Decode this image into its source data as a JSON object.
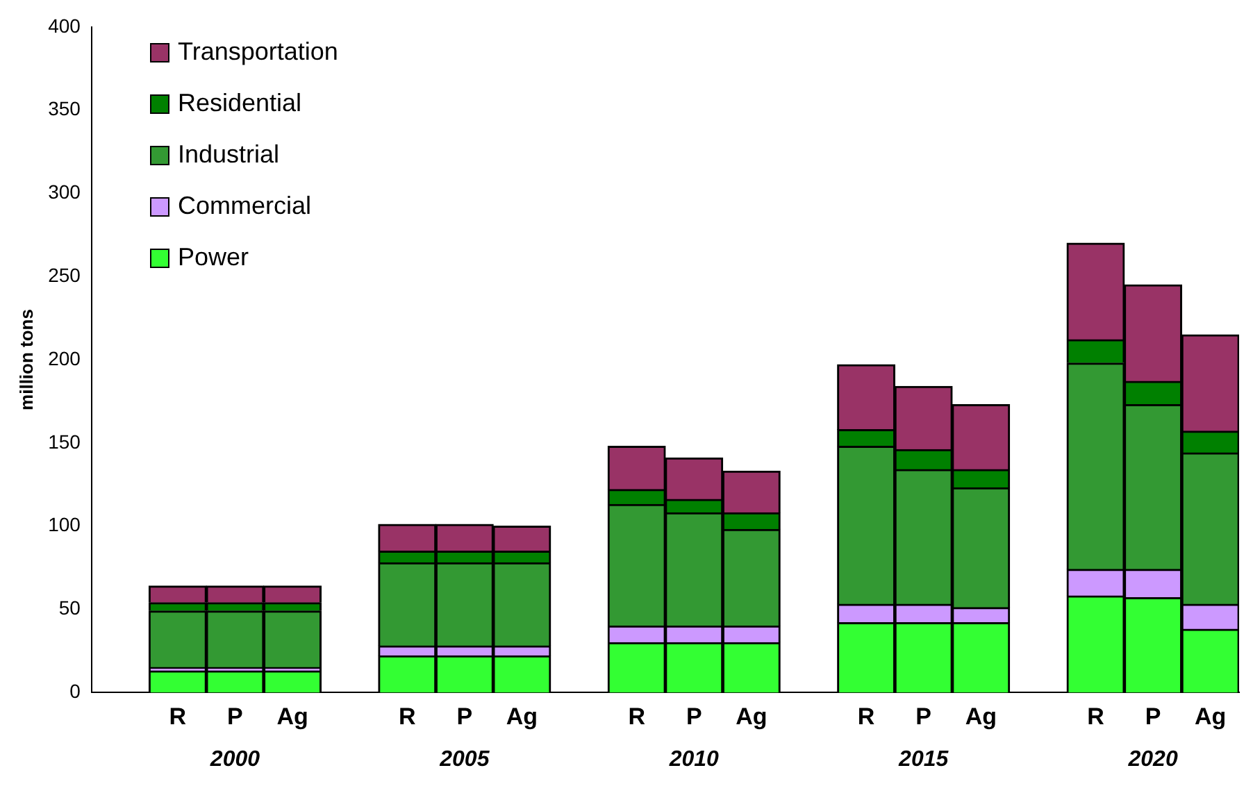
{
  "chart_data": {
    "type": "bar",
    "stacked": true,
    "ylabel": "million tons",
    "categories": [
      null,
      "R",
      "P",
      "Ag",
      null,
      "R",
      "P",
      "Ag",
      null,
      "R",
      "P",
      "Ag",
      null,
      "R",
      "P",
      "Ag",
      null,
      "R",
      "P",
      "Ag"
    ],
    "annotations": [
      "2000",
      "2005",
      "2010",
      "2015",
      "2020"
    ],
    "series": [
      {
        "name": "Power",
        "color": "#33ff33",
        "values": [
          null,
          13,
          13,
          13,
          null,
          22,
          22,
          22,
          null,
          30,
          30,
          30,
          null,
          42,
          42,
          42,
          null,
          58,
          57,
          38
        ]
      },
      {
        "name": "Commercial",
        "color": "#cc99ff",
        "values": [
          null,
          2,
          2,
          2,
          null,
          6,
          6,
          6,
          null,
          10,
          10,
          10,
          null,
          11,
          11,
          9,
          null,
          16,
          17,
          15
        ]
      },
      {
        "name": "Industrial",
        "color": "#339933",
        "values": [
          null,
          34,
          34,
          34,
          null,
          50,
          50,
          50,
          null,
          73,
          68,
          58,
          null,
          95,
          81,
          72,
          null,
          124,
          99,
          91
        ]
      },
      {
        "name": "Residential",
        "color": "#008000",
        "values": [
          null,
          5,
          5,
          5,
          null,
          7,
          7,
          7,
          null,
          9,
          8,
          10,
          null,
          10,
          12,
          11,
          null,
          14,
          14,
          13
        ]
      },
      {
        "name": "Transportation",
        "color": "#993366",
        "values": [
          null,
          10,
          10,
          10,
          null,
          16,
          16,
          15,
          null,
          26,
          25,
          25,
          null,
          39,
          38,
          39,
          null,
          58,
          58,
          58
        ]
      }
    ],
    "ylim": [
      0,
      400
    ],
    "yticks": [
      0,
      50,
      100,
      150,
      200,
      250,
      300,
      350,
      400
    ],
    "grid": false,
    "legend": "top left"
  }
}
